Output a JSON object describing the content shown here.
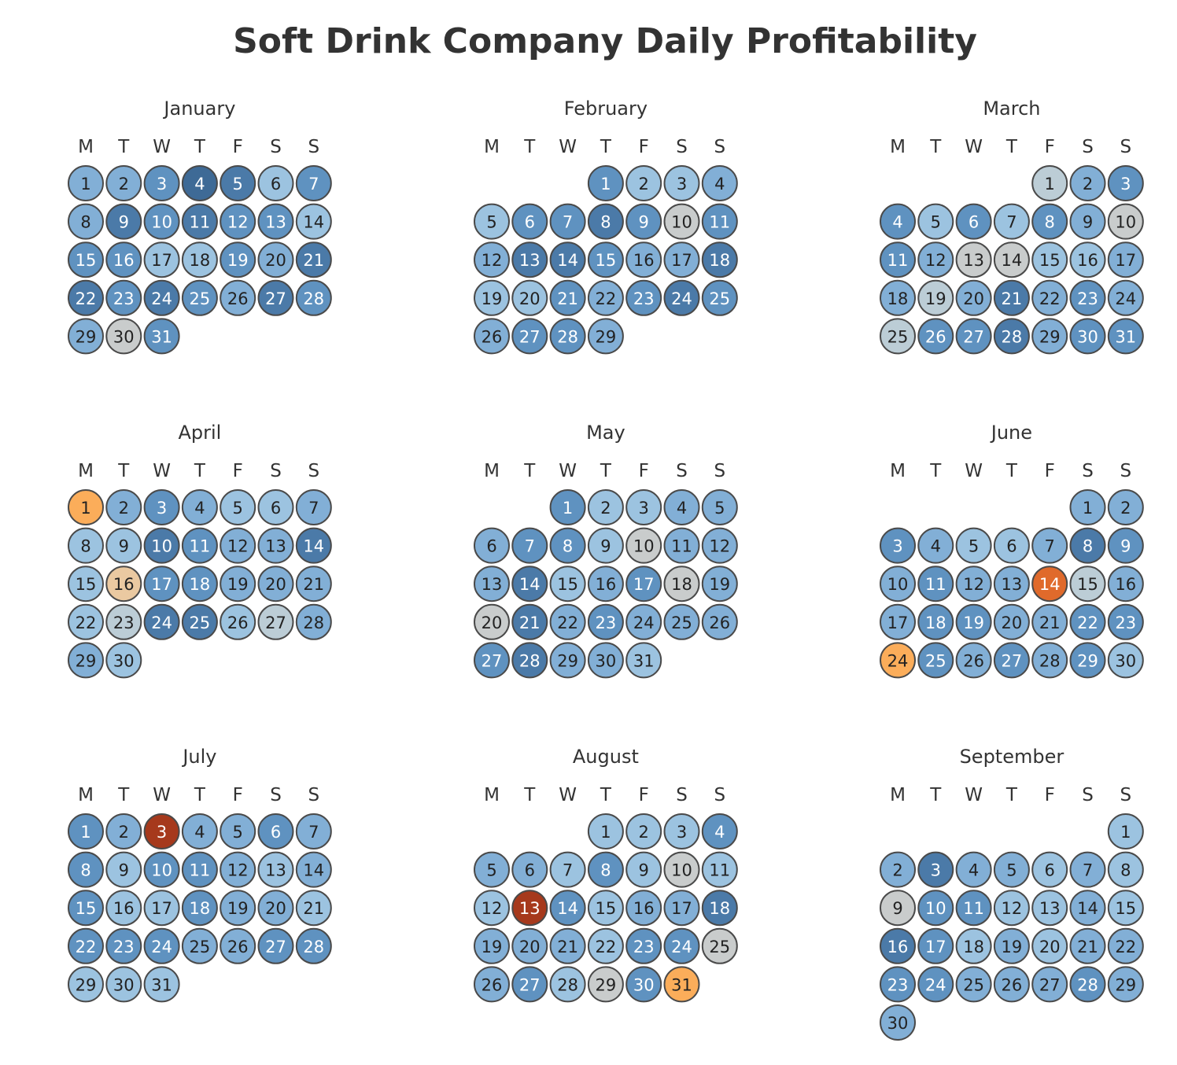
{
  "chart_data": {
    "type": "heatmap",
    "subtype": "calendar",
    "title": "Soft Drink Company Daily Profitability",
    "weekday_labels": [
      "M",
      "T",
      "W",
      "T",
      "F",
      "S",
      "S"
    ],
    "color_scale": {
      "description": "diverging: orange/red = low profitability, grey = neutral, blue = high profitability",
      "low": "#a6391c",
      "mid": "#c9cccc",
      "high": "#3e6a96"
    },
    "months": [
      {
        "name": "January",
        "start_weekday": 0,
        "days": 31,
        "levels": [
          2,
          2,
          3,
          5,
          4,
          1,
          3,
          2,
          4,
          3,
          4,
          3,
          3,
          1,
          3,
          3,
          1,
          1,
          3,
          2,
          4,
          4,
          3,
          4,
          3,
          2,
          4,
          3,
          2,
          0,
          3
        ]
      },
      {
        "name": "February",
        "start_weekday": 3,
        "days": 29,
        "levels": [
          3,
          1,
          1,
          2,
          1,
          3,
          3,
          4,
          3,
          0,
          3,
          2,
          4,
          4,
          3,
          2,
          2,
          4,
          1,
          1,
          3,
          2,
          3,
          4,
          3,
          2,
          3,
          3,
          2
        ]
      },
      {
        "name": "March",
        "start_weekday": 4,
        "days": 31,
        "levels": [
          -1,
          2,
          3,
          3,
          1,
          3,
          1,
          3,
          2,
          0,
          3,
          2,
          0,
          0,
          1,
          1,
          2,
          2,
          -1,
          2,
          4,
          2,
          3,
          2,
          -1,
          3,
          3,
          4,
          2,
          3,
          3
        ]
      },
      {
        "name": "April",
        "start_weekday": 0,
        "days": 30,
        "levels": [
          -3,
          2,
          3,
          2,
          1,
          1,
          2,
          1,
          1,
          4,
          3,
          2,
          2,
          4,
          1,
          -2,
          3,
          3,
          2,
          2,
          2,
          1,
          -1,
          4,
          4,
          1,
          -1,
          2,
          2,
          1
        ]
      },
      {
        "name": "May",
        "start_weekday": 2,
        "days": 31,
        "levels": [
          3,
          1,
          1,
          2,
          2,
          2,
          3,
          3,
          1,
          0,
          2,
          2,
          2,
          4,
          1,
          2,
          3,
          0,
          2,
          0,
          4,
          2,
          3,
          2,
          2,
          2,
          3,
          4,
          2,
          2,
          1
        ]
      },
      {
        "name": "June",
        "start_weekday": 5,
        "days": 30,
        "levels": [
          2,
          2,
          3,
          2,
          1,
          1,
          2,
          4,
          3,
          2,
          3,
          2,
          2,
          -4,
          -1,
          2,
          2,
          3,
          3,
          2,
          2,
          3,
          3,
          -3,
          3,
          2,
          3,
          2,
          3,
          1
        ]
      },
      {
        "name": "July",
        "start_weekday": 0,
        "days": 31,
        "levels": [
          3,
          2,
          -5,
          2,
          2,
          3,
          2,
          3,
          1,
          3,
          3,
          2,
          1,
          2,
          3,
          1,
          1,
          3,
          2,
          2,
          1,
          3,
          3,
          3,
          2,
          2,
          3,
          3,
          1,
          1,
          1
        ]
      },
      {
        "name": "August",
        "start_weekday": 3,
        "days": 31,
        "levels": [
          1,
          1,
          1,
          3,
          2,
          2,
          1,
          3,
          1,
          0,
          1,
          1,
          -5,
          3,
          1,
          2,
          2,
          4,
          2,
          2,
          2,
          1,
          3,
          3,
          0,
          2,
          3,
          1,
          0,
          3,
          -3
        ]
      },
      {
        "name": "September",
        "start_weekday": 6,
        "days": 30,
        "levels": [
          1,
          2,
          4,
          2,
          2,
          1,
          2,
          1,
          0,
          3,
          3,
          1,
          1,
          2,
          1,
          4,
          3,
          1,
          2,
          1,
          2,
          2,
          3,
          3,
          2,
          2,
          2,
          3,
          2,
          2
        ]
      }
    ]
  }
}
